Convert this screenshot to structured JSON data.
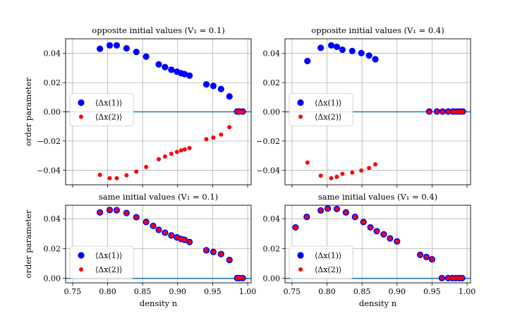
{
  "chart_data": [
    {
      "type": "scatter",
      "title": "opposite initial values (V₁ = 0.1)",
      "xlabel": "",
      "ylabel": "order parameter",
      "xlim": [
        0.74,
        1.005
      ],
      "ylim": [
        -0.05,
        0.05
      ],
      "yticks": [
        0.04,
        0.02,
        0.0,
        -0.02,
        -0.04
      ],
      "ytick_labels": [
        "0.04",
        "0.02",
        "0.00",
        "−0.02",
        "−0.04"
      ],
      "legend": [
        "⟨Δx(1)⟩",
        "⟨Δx(2)⟩"
      ],
      "legend_position": "center-left",
      "series": [
        {
          "name": "⟨Δx(1)⟩",
          "color": "#0000ff",
          "x": [
            0.789,
            0.803,
            0.813,
            0.827,
            0.841,
            0.855,
            0.873,
            0.882,
            0.891,
            0.899,
            0.905,
            0.91,
            0.917,
            0.941,
            0.951,
            0.962,
            0.974,
            0.985,
            0.988,
            0.993
          ],
          "y": [
            0.0432,
            0.0455,
            0.0455,
            0.0435,
            0.041,
            0.0378,
            0.0325,
            0.0306,
            0.0288,
            0.0275,
            0.0264,
            0.0258,
            0.0248,
            0.0188,
            0.0177,
            0.0156,
            0.0105,
            0.0002,
            0.0002,
            0.0002
          ]
        },
        {
          "name": "⟨Δx(2)⟩",
          "color": "#ff0000",
          "x": [
            0.789,
            0.803,
            0.813,
            0.827,
            0.841,
            0.855,
            0.873,
            0.882,
            0.891,
            0.899,
            0.905,
            0.91,
            0.917,
            0.941,
            0.951,
            0.962,
            0.974,
            0.985,
            0.988,
            0.993
          ],
          "y": [
            -0.0432,
            -0.0455,
            -0.0455,
            -0.0435,
            -0.041,
            -0.0378,
            -0.0325,
            -0.0306,
            -0.0288,
            -0.0275,
            -0.0264,
            -0.0258,
            -0.0248,
            -0.0188,
            -0.0177,
            -0.0156,
            -0.0105,
            0.0,
            0.0,
            0.0
          ]
        }
      ]
    },
    {
      "type": "scatter",
      "title": "opposite initial values (V₁ = 0.4)",
      "xlabel": "",
      "ylabel": "",
      "xlim": [
        0.74,
        1.005
      ],
      "ylim": [
        -0.05,
        0.05
      ],
      "yticks": [
        0.04,
        0.02,
        0.0,
        -0.02,
        -0.04
      ],
      "ytick_labels": [
        "0.04",
        "0.02",
        "0.00",
        "−0.02",
        "−0.04"
      ],
      "legend": [
        "⟨Δx(1)⟩",
        "⟨Δx(2)⟩"
      ],
      "legend_position": "center-left",
      "series": [
        {
          "name": "⟨Δx(1)⟩",
          "color": "#0000ff",
          "x": [
            0.772,
            0.791,
            0.806,
            0.814,
            0.822,
            0.836,
            0.849,
            0.86,
            0.869,
            0.946,
            0.957,
            0.965,
            0.973,
            0.98,
            0.985,
            0.99,
            0.994
          ],
          "y": [
            0.0348,
            0.0438,
            0.0455,
            0.0445,
            0.0425,
            0.0416,
            0.0402,
            0.0385,
            0.036,
            0.0002,
            0.0002,
            0.0002,
            0.0002,
            0.0002,
            0.0002,
            0.0002,
            0.0002
          ]
        },
        {
          "name": "⟨Δx(2)⟩",
          "color": "#ff0000",
          "x": [
            0.772,
            0.791,
            0.806,
            0.814,
            0.822,
            0.836,
            0.849,
            0.86,
            0.869,
            0.946,
            0.957,
            0.965,
            0.973,
            0.98,
            0.985,
            0.99,
            0.994
          ],
          "y": [
            -0.0348,
            -0.0438,
            -0.0455,
            -0.0445,
            -0.0425,
            -0.0416,
            -0.0402,
            -0.0385,
            -0.036,
            0.0,
            0.0,
            0.0,
            0.0,
            0.0,
            0.0,
            0.0,
            0.0
          ]
        }
      ]
    },
    {
      "type": "scatter",
      "title": "same initial values (V₁ = 0.1)",
      "xlabel": "density n",
      "ylabel": "order parameter",
      "xlim": [
        0.74,
        1.005
      ],
      "ylim": [
        -0.003,
        0.049
      ],
      "xticks": [
        0.75,
        0.8,
        0.85,
        0.9,
        0.95,
        1.0
      ],
      "xtick_labels": [
        "0.75",
        "0.80",
        "0.85",
        "0.90",
        "0.95",
        "1.00"
      ],
      "yticks": [
        0.04,
        0.02,
        0.0
      ],
      "ytick_labels": [
        "0.04",
        "0.02",
        "0.00"
      ],
      "legend": [
        "⟨Δx(1)⟩",
        "⟨Δx(2)⟩"
      ],
      "legend_position": "lower-left",
      "series": [
        {
          "name": "⟨Δx(1)⟩",
          "color": "#0000ff",
          "x": [
            0.789,
            0.803,
            0.813,
            0.827,
            0.841,
            0.855,
            0.865,
            0.873,
            0.882,
            0.891,
            0.899,
            0.905,
            0.91,
            0.917,
            0.941,
            0.951,
            0.962,
            0.974,
            0.985,
            0.988,
            0.993
          ],
          "y": [
            0.0442,
            0.0458,
            0.0457,
            0.0438,
            0.041,
            0.0378,
            0.0352,
            0.0325,
            0.0306,
            0.0288,
            0.0275,
            0.0264,
            0.0258,
            0.0244,
            0.0188,
            0.0177,
            0.0163,
            0.0123,
            0.0002,
            0.0002,
            0.0002
          ]
        },
        {
          "name": "⟨Δx(2)⟩",
          "color": "#ff0000",
          "x": [
            0.789,
            0.803,
            0.813,
            0.827,
            0.841,
            0.855,
            0.865,
            0.873,
            0.882,
            0.891,
            0.899,
            0.905,
            0.91,
            0.917,
            0.941,
            0.951,
            0.962,
            0.974,
            0.985,
            0.988,
            0.993
          ],
          "y": [
            0.0442,
            0.0458,
            0.0457,
            0.0438,
            0.041,
            0.0378,
            0.0352,
            0.0325,
            0.0306,
            0.0288,
            0.0275,
            0.0264,
            0.0258,
            0.0244,
            0.0188,
            0.0177,
            0.0163,
            0.0123,
            0.0002,
            0.0002,
            0.0002
          ]
        }
      ]
    },
    {
      "type": "scatter",
      "title": "same initial values (V₁ = 0.4)",
      "xlabel": "density n",
      "ylabel": "",
      "xlim": [
        0.74,
        1.005
      ],
      "ylim": [
        -0.003,
        0.049
      ],
      "xticks": [
        0.75,
        0.8,
        0.85,
        0.9,
        0.95,
        1.0
      ],
      "xtick_labels": [
        "0.75",
        "0.80",
        "0.85",
        "0.90",
        "0.95",
        "1.00"
      ],
      "yticks": [
        0.04,
        0.02,
        0.0
      ],
      "ytick_labels": [
        "0.04",
        "0.02",
        "0.00"
      ],
      "legend": [
        "⟨Δx(1)⟩",
        "⟨Δx(2)⟩"
      ],
      "legend_position": "lower-left",
      "series": [
        {
          "name": "⟨Δx(1)⟩",
          "color": "#0000ff",
          "x": [
            0.755,
            0.771,
            0.791,
            0.801,
            0.814,
            0.827,
            0.84,
            0.852,
            0.862,
            0.871,
            0.881,
            0.89,
            0.9,
            0.933,
            0.942,
            0.95,
            0.964,
            0.973,
            0.979,
            0.984,
            0.989,
            0.993
          ],
          "y": [
            0.0342,
            0.0412,
            0.0455,
            0.0468,
            0.0465,
            0.0442,
            0.0412,
            0.0378,
            0.0342,
            0.0316,
            0.0295,
            0.0268,
            0.0248,
            0.0158,
            0.0143,
            0.0128,
            0.0002,
            0.0002,
            0.0002,
            0.0002,
            0.0002,
            0.0002
          ]
        },
        {
          "name": "⟨Δx(2)⟩",
          "color": "#ff0000",
          "x": [
            0.755,
            0.771,
            0.791,
            0.801,
            0.814,
            0.827,
            0.84,
            0.852,
            0.862,
            0.871,
            0.881,
            0.89,
            0.9,
            0.933,
            0.942,
            0.95,
            0.964,
            0.973,
            0.979,
            0.984,
            0.989,
            0.993
          ],
          "y": [
            0.0342,
            0.0412,
            0.0455,
            0.0468,
            0.0465,
            0.0442,
            0.0412,
            0.0378,
            0.0342,
            0.0316,
            0.0295,
            0.0268,
            0.0248,
            0.0158,
            0.0143,
            0.0128,
            0.0002,
            0.0002,
            0.0002,
            0.0002,
            0.0002,
            0.0002
          ]
        }
      ]
    }
  ],
  "reference_line": {
    "y": 0.0,
    "color": "#1f77b4"
  },
  "grid": true
}
